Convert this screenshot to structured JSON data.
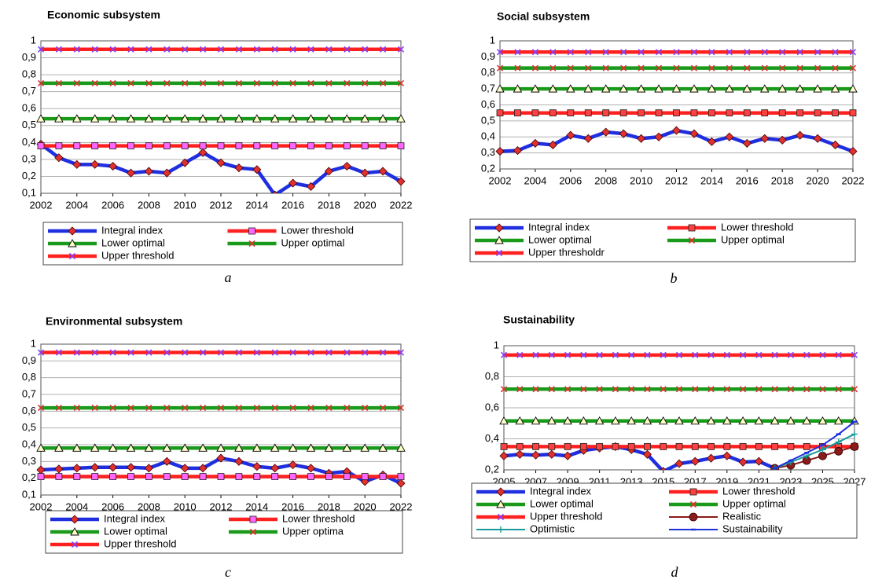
{
  "chart_data": [
    {
      "type": "line",
      "title": "Economic subsystem",
      "label": "a",
      "x": [
        2002,
        2003,
        2004,
        2005,
        2006,
        2007,
        2008,
        2009,
        2010,
        2011,
        2012,
        2013,
        2014,
        2015,
        2016,
        2017,
        2018,
        2019,
        2020,
        2021,
        2022
      ],
      "xlim": [
        2002,
        2022
      ],
      "xticks": [
        2002,
        2004,
        2006,
        2008,
        2010,
        2012,
        2014,
        2016,
        2018,
        2020,
        2022
      ],
      "ylim": [
        0.1,
        1
      ],
      "yticks": [
        {
          "value": 0.1,
          "label": "0,1"
        },
        {
          "value": 0.2,
          "label": "0,2"
        },
        {
          "value": 0.3,
          "label": "0,3"
        },
        {
          "value": 0.4,
          "label": "0,4"
        },
        {
          "value": 0.5,
          "label": "0,5"
        },
        {
          "value": 0.6,
          "label": "0,6"
        },
        {
          "value": 0.7,
          "label": "0,7"
        },
        {
          "value": 0.8,
          "label": "0,8"
        },
        {
          "value": 0.9,
          "label": "0,9"
        },
        1
      ],
      "grid": true,
      "series": [
        {
          "name": "Integral index",
          "color": "#1f2fe0",
          "marker": "diamond",
          "marker_color": "#e03030",
          "width": "thick",
          "values": [
            0.39,
            0.31,
            0.27,
            0.27,
            0.26,
            0.22,
            0.23,
            0.22,
            0.28,
            0.34,
            0.28,
            0.25,
            0.24,
            0.09,
            0.16,
            0.14,
            0.23,
            0.26,
            0.22,
            0.23,
            0.17
          ]
        },
        {
          "name": "Lower threshold",
          "color": "#ff2020",
          "marker": "square",
          "marker_color": "#ff66ff",
          "width": "thick",
          "values": [
            0.38,
            0.38,
            0.38,
            0.38,
            0.38,
            0.38,
            0.38,
            0.38,
            0.38,
            0.38,
            0.38,
            0.38,
            0.38,
            0.38,
            0.38,
            0.38,
            0.38,
            0.38,
            0.38,
            0.38,
            0.38
          ]
        },
        {
          "name": "Lower optimal",
          "color": "#1a9a1a",
          "marker": "triangle",
          "marker_color": "#ffffcc",
          "width": "thick",
          "values": [
            0.54,
            0.54,
            0.54,
            0.54,
            0.54,
            0.54,
            0.54,
            0.54,
            0.54,
            0.54,
            0.54,
            0.54,
            0.54,
            0.54,
            0.54,
            0.54,
            0.54,
            0.54,
            0.54,
            0.54,
            0.54
          ]
        },
        {
          "name": "Upper optimal",
          "color": "#1a9a1a",
          "marker": "x",
          "marker_color": "#e03030",
          "width": "thick",
          "values": [
            0.75,
            0.75,
            0.75,
            0.75,
            0.75,
            0.75,
            0.75,
            0.75,
            0.75,
            0.75,
            0.75,
            0.75,
            0.75,
            0.75,
            0.75,
            0.75,
            0.75,
            0.75,
            0.75,
            0.75,
            0.75
          ]
        },
        {
          "name": "Upper threshold",
          "color": "#ff2020",
          "marker": "x",
          "marker_color": "#8040ff",
          "width": "thick",
          "values": [
            0.95,
            0.95,
            0.95,
            0.95,
            0.95,
            0.95,
            0.95,
            0.95,
            0.95,
            0.95,
            0.95,
            0.95,
            0.95,
            0.95,
            0.95,
            0.95,
            0.95,
            0.95,
            0.95,
            0.95,
            0.95
          ]
        }
      ]
    },
    {
      "type": "line",
      "title": "Social subsystem",
      "label": "b",
      "x": [
        2002,
        2003,
        2004,
        2005,
        2006,
        2007,
        2008,
        2009,
        2010,
        2011,
        2012,
        2013,
        2014,
        2015,
        2016,
        2017,
        2018,
        2019,
        2020,
        2021,
        2022
      ],
      "xlim": [
        2002,
        2022
      ],
      "xticks": [
        2002,
        2004,
        2006,
        2008,
        2010,
        2012,
        2014,
        2016,
        2018,
        2020,
        2022
      ],
      "ylim": [
        0.2,
        1
      ],
      "yticks": [
        {
          "value": 0.2,
          "label": "0,2"
        },
        {
          "value": 0.3,
          "label": "0,3"
        },
        {
          "value": 0.4,
          "label": "0,4"
        },
        {
          "value": 0.5,
          "label": "0,5"
        },
        {
          "value": 0.6,
          "label": "0,6"
        },
        {
          "value": 0.7,
          "label": "0,7"
        },
        {
          "value": 0.8,
          "label": "0,8"
        },
        {
          "value": 0.9,
          "label": "0,9"
        },
        1
      ],
      "grid": true,
      "series": [
        {
          "name": "Integral index",
          "color": "#1f2fe0",
          "marker": "diamond",
          "marker_color": "#e03030",
          "width": "thick",
          "values": [
            0.31,
            0.315,
            0.36,
            0.35,
            0.41,
            0.39,
            0.43,
            0.42,
            0.39,
            0.4,
            0.44,
            0.42,
            0.37,
            0.4,
            0.36,
            0.39,
            0.38,
            0.41,
            0.39,
            0.35,
            0.31
          ]
        },
        {
          "name": "Lower threshold",
          "color": "#ff2020",
          "marker": "square",
          "marker_color": "#ff4040",
          "width": "thick",
          "values": [
            0.55,
            0.55,
            0.55,
            0.55,
            0.55,
            0.55,
            0.55,
            0.55,
            0.55,
            0.55,
            0.55,
            0.55,
            0.55,
            0.55,
            0.55,
            0.55,
            0.55,
            0.55,
            0.55,
            0.55,
            0.55
          ]
        },
        {
          "name": "Lower optimal",
          "color": "#1a9a1a",
          "marker": "triangle",
          "marker_color": "#ffffcc",
          "width": "thick",
          "values": [
            0.7,
            0.7,
            0.7,
            0.7,
            0.7,
            0.7,
            0.7,
            0.7,
            0.7,
            0.7,
            0.7,
            0.7,
            0.7,
            0.7,
            0.7,
            0.7,
            0.7,
            0.7,
            0.7,
            0.7,
            0.7
          ]
        },
        {
          "name": "Upper optimal",
          "color": "#1a9a1a",
          "marker": "x",
          "marker_color": "#e03030",
          "width": "thick",
          "values": [
            0.83,
            0.83,
            0.83,
            0.83,
            0.83,
            0.83,
            0.83,
            0.83,
            0.83,
            0.83,
            0.83,
            0.83,
            0.83,
            0.83,
            0.83,
            0.83,
            0.83,
            0.83,
            0.83,
            0.83,
            0.83
          ]
        },
        {
          "name": "Upper thresholdr",
          "color": "#ff2020",
          "marker": "x",
          "marker_color": "#8040ff",
          "width": "thick",
          "values": [
            0.93,
            0.93,
            0.93,
            0.93,
            0.93,
            0.93,
            0.93,
            0.93,
            0.93,
            0.93,
            0.93,
            0.93,
            0.93,
            0.93,
            0.93,
            0.93,
            0.93,
            0.93,
            0.93,
            0.93,
            0.93
          ]
        }
      ]
    },
    {
      "type": "line",
      "title": "Environmental subsystem",
      "label": "c",
      "x": [
        2002,
        2003,
        2004,
        2005,
        2006,
        2007,
        2008,
        2009,
        2010,
        2011,
        2012,
        2013,
        2014,
        2015,
        2016,
        2017,
        2018,
        2019,
        2020,
        2021,
        2022
      ],
      "xlim": [
        2002,
        2022
      ],
      "xticks": [
        2002,
        2004,
        2006,
        2008,
        2010,
        2012,
        2014,
        2016,
        2018,
        2020,
        2022
      ],
      "ylim": [
        0.1,
        1
      ],
      "yticks": [
        {
          "value": 0.1,
          "label": "0,1"
        },
        {
          "value": 0.2,
          "label": "0,2"
        },
        {
          "value": 0.3,
          "label": "0,3"
        },
        {
          "value": 0.4,
          "label": "0,4"
        },
        {
          "value": 0.5,
          "label": "0,5"
        },
        {
          "value": 0.6,
          "label": "0,6"
        },
        {
          "value": 0.7,
          "label": "0,7"
        },
        {
          "value": 0.8,
          "label": "0,8"
        },
        {
          "value": 0.9,
          "label": "0,9"
        },
        1
      ],
      "grid": true,
      "series": [
        {
          "name": "Integral index",
          "color": "#1f2fe0",
          "marker": "diamond",
          "marker_color": "#e03030",
          "width": "thick",
          "values": [
            0.25,
            0.255,
            0.26,
            0.265,
            0.265,
            0.265,
            0.26,
            0.3,
            0.26,
            0.26,
            0.32,
            0.3,
            0.27,
            0.26,
            0.28,
            0.26,
            0.23,
            0.24,
            0.18,
            0.22,
            0.17
          ]
        },
        {
          "name": "Lower threshold",
          "color": "#ff2020",
          "marker": "square",
          "marker_color": "#ff66ff",
          "width": "thick",
          "values": [
            0.21,
            0.21,
            0.21,
            0.21,
            0.21,
            0.21,
            0.21,
            0.21,
            0.21,
            0.21,
            0.21,
            0.21,
            0.21,
            0.21,
            0.21,
            0.21,
            0.21,
            0.21,
            0.21,
            0.21,
            0.21
          ]
        },
        {
          "name": "Lower optimal",
          "color": "#1a9a1a",
          "marker": "triangle",
          "marker_color": "#ffffcc",
          "width": "thick",
          "values": [
            0.38,
            0.38,
            0.38,
            0.38,
            0.38,
            0.38,
            0.38,
            0.38,
            0.38,
            0.38,
            0.38,
            0.38,
            0.38,
            0.38,
            0.38,
            0.38,
            0.38,
            0.38,
            0.38,
            0.38,
            0.38
          ]
        },
        {
          "name": "Upper optima",
          "color": "#1a9a1a",
          "marker": "x",
          "marker_color": "#e03030",
          "width": "thick",
          "values": [
            0.62,
            0.62,
            0.62,
            0.62,
            0.62,
            0.62,
            0.62,
            0.62,
            0.62,
            0.62,
            0.62,
            0.62,
            0.62,
            0.62,
            0.62,
            0.62,
            0.62,
            0.62,
            0.62,
            0.62,
            0.62
          ]
        },
        {
          "name": "Upper threshold",
          "color": "#ff2020",
          "marker": "x",
          "marker_color": "#8040ff",
          "width": "thick",
          "values": [
            0.95,
            0.95,
            0.95,
            0.95,
            0.95,
            0.95,
            0.95,
            0.95,
            0.95,
            0.95,
            0.95,
            0.95,
            0.95,
            0.95,
            0.95,
            0.95,
            0.95,
            0.95,
            0.95,
            0.95,
            0.95
          ]
        }
      ]
    },
    {
      "type": "line",
      "title": "Sustainability",
      "label": "d",
      "x": [
        2005,
        2006,
        2007,
        2008,
        2009,
        2010,
        2011,
        2012,
        2013,
        2014,
        2015,
        2016,
        2017,
        2018,
        2019,
        2020,
        2021,
        2022,
        2023,
        2024,
        2025,
        2026,
        2027
      ],
      "xlim": [
        2005,
        2027
      ],
      "xticks": [
        2005,
        2007,
        2009,
        2011,
        2013,
        2015,
        2017,
        2019,
        2021,
        2023,
        2025,
        2027
      ],
      "ylim": [
        0.2,
        1
      ],
      "yticks": [
        {
          "value": 0.2,
          "label": "0,2"
        },
        {
          "value": 0.4,
          "label": "0,4"
        },
        {
          "value": 0.6,
          "label": "0,6"
        },
        {
          "value": 0.8,
          "label": "0,8"
        },
        1
      ],
      "grid": true,
      "series": [
        {
          "name": "Integral index",
          "color": "#1f2fe0",
          "marker": "diamond",
          "marker_color": "#e03030",
          "width": "thick",
          "values": [
            0.29,
            0.3,
            0.295,
            0.3,
            0.29,
            0.325,
            0.34,
            0.35,
            0.33,
            0.3,
            0.19,
            0.24,
            0.255,
            0.275,
            0.29,
            0.25,
            0.255,
            0.21,
            null,
            null,
            null,
            null,
            null
          ]
        },
        {
          "name": "Lower threshold",
          "color": "#ff2020",
          "marker": "square",
          "marker_color": "#ff4040",
          "width": "thick",
          "values": [
            0.35,
            0.35,
            0.35,
            0.35,
            0.35,
            0.35,
            0.35,
            0.35,
            0.35,
            0.35,
            0.35,
            0.35,
            0.35,
            0.35,
            0.35,
            0.35,
            0.35,
            0.35,
            0.35,
            0.35,
            0.35,
            0.35,
            0.35
          ]
        },
        {
          "name": "Lower optimal",
          "color": "#1a9a1a",
          "marker": "triangle",
          "marker_color": "#ffffcc",
          "width": "thick",
          "values": [
            0.515,
            0.515,
            0.515,
            0.515,
            0.515,
            0.515,
            0.515,
            0.515,
            0.515,
            0.515,
            0.515,
            0.515,
            0.515,
            0.515,
            0.515,
            0.515,
            0.515,
            0.515,
            0.515,
            0.515,
            0.515,
            0.515,
            0.515
          ]
        },
        {
          "name": "Upper optimal",
          "color": "#1a9a1a",
          "marker": "x",
          "marker_color": "#e03030",
          "width": "thick",
          "values": [
            0.72,
            0.72,
            0.72,
            0.72,
            0.72,
            0.72,
            0.72,
            0.72,
            0.72,
            0.72,
            0.72,
            0.72,
            0.72,
            0.72,
            0.72,
            0.72,
            0.72,
            0.72,
            0.72,
            0.72,
            0.72,
            0.72,
            0.72
          ]
        },
        {
          "name": "Upper threshold",
          "color": "#ff2020",
          "marker": "x",
          "marker_color": "#8040ff",
          "width": "thick",
          "values": [
            0.94,
            0.94,
            0.94,
            0.94,
            0.94,
            0.94,
            0.94,
            0.94,
            0.94,
            0.94,
            0.94,
            0.94,
            0.94,
            0.94,
            0.94,
            0.94,
            0.94,
            0.94,
            0.94,
            0.94,
            0.94,
            0.94,
            0.94
          ]
        },
        {
          "name": "Realistic",
          "color": "#8b1a1a",
          "marker": "circle",
          "marker_color": "#8b1a1a",
          "width": "thin",
          "values": [
            null,
            null,
            null,
            null,
            null,
            null,
            null,
            null,
            null,
            null,
            null,
            null,
            null,
            null,
            null,
            null,
            null,
            0.21,
            0.23,
            0.26,
            0.29,
            0.32,
            0.35
          ]
        },
        {
          "name": "Optimistic",
          "color": "#1a9a9a",
          "marker": "plus",
          "marker_color": "#1a9a9a",
          "width": "thin",
          "values": [
            null,
            null,
            null,
            null,
            null,
            null,
            null,
            null,
            null,
            null,
            null,
            null,
            null,
            null,
            null,
            null,
            null,
            0.21,
            0.25,
            0.29,
            0.33,
            0.38,
            0.43
          ]
        },
        {
          "name": "Sustainability",
          "color": "#1f2fe0",
          "marker": "dash",
          "marker_color": "#1f2fe0",
          "width": "thin",
          "values": [
            null,
            null,
            null,
            null,
            null,
            null,
            null,
            null,
            null,
            null,
            null,
            null,
            null,
            null,
            null,
            null,
            null,
            0.21,
            0.26,
            0.31,
            0.36,
            0.43,
            0.51
          ]
        }
      ]
    }
  ]
}
